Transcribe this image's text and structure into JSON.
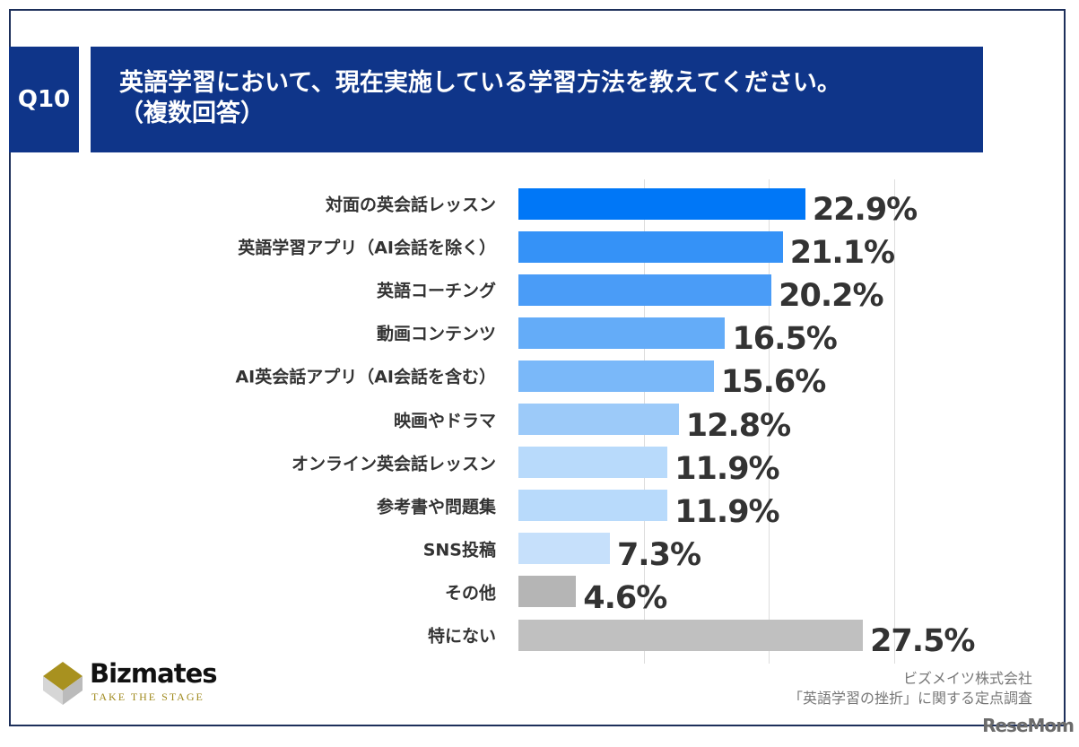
{
  "header": {
    "question_no": "Q10",
    "title_line1": "英語学習において、現在実施している学習方法を教えてください。",
    "title_line2": "（複数回答）"
  },
  "chart_data": {
    "type": "bar",
    "orientation": "horizontal",
    "categories": [
      "対面の英会話レッスン",
      "英語学習アプリ（AI会話を除く）",
      "英語コーチング",
      "動画コンテンツ",
      "AI英会話アプリ（AI会話を含む）",
      "映画やドラマ",
      "オンライン英会話レッスン",
      "参考書や問題集",
      "SNS投稿",
      "その他",
      "特にない"
    ],
    "values": [
      22.9,
      21.1,
      20.2,
      16.5,
      15.6,
      12.8,
      11.9,
      11.9,
      7.3,
      4.6,
      27.5
    ],
    "data_labels": [
      "22.9%",
      "21.1%",
      "20.2%",
      "16.5%",
      "15.6%",
      "12.8%",
      "11.9%",
      "11.9%",
      "7.3%",
      "4.6%",
      "27.5%"
    ],
    "colors": [
      "#0077f7",
      "#3592f7",
      "#4a9cf7",
      "#64acf8",
      "#7ab8f9",
      "#9ccaf9",
      "#b8dafb",
      "#b8dafb",
      "#c6e0fb",
      "#b5b5b5",
      "#c0c0c0"
    ],
    "xlim": [
      0,
      30
    ],
    "grid": true
  },
  "footer": {
    "brand": "Bizmates",
    "tagline": "TAKE THE STAGE",
    "source_line1": "ビズメイツ株式会社",
    "source_line2": "「英語学習の挫折」に関する定点調査",
    "watermark": "ReseMom"
  }
}
